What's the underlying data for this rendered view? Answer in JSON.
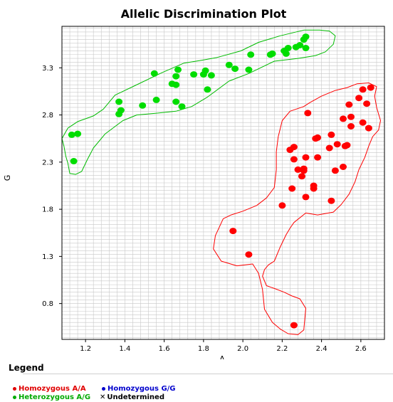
{
  "chart_data": {
    "type": "scatter",
    "title": "Allelic Discrimination Plot",
    "xlabel": "A",
    "ylabel": "G",
    "xlim": [
      1.08,
      2.72
    ],
    "ylim": [
      0.42,
      3.74
    ],
    "x_ticks": [
      "1.2",
      "1.4",
      "1.6",
      "1.8",
      "2.0",
      "2.2",
      "2.4",
      "2.6"
    ],
    "y_ticks": [
      "0.8",
      "1.3",
      "1.8",
      "2.3",
      "2.8",
      "3.3"
    ],
    "grid": true,
    "series": [
      {
        "name": "Homozygous A/A",
        "color": "#ff0000",
        "points": [
          [
            2.26,
            0.57
          ],
          [
            2.03,
            1.32
          ],
          [
            1.95,
            1.57
          ],
          [
            2.2,
            1.84
          ],
          [
            2.32,
            1.93
          ],
          [
            2.45,
            1.89
          ],
          [
            2.25,
            2.02
          ],
          [
            2.36,
            2.02
          ],
          [
            2.36,
            2.05
          ],
          [
            2.3,
            2.15
          ],
          [
            2.31,
            2.21
          ],
          [
            2.28,
            2.22
          ],
          [
            2.31,
            2.23
          ],
          [
            2.47,
            2.21
          ],
          [
            2.51,
            2.25
          ],
          [
            2.26,
            2.33
          ],
          [
            2.32,
            2.35
          ],
          [
            2.38,
            2.35
          ],
          [
            2.24,
            2.43
          ],
          [
            2.26,
            2.46
          ],
          [
            2.44,
            2.45
          ],
          [
            2.48,
            2.49
          ],
          [
            2.52,
            2.47
          ],
          [
            2.53,
            2.48
          ],
          [
            2.37,
            2.55
          ],
          [
            2.38,
            2.56
          ],
          [
            2.45,
            2.59
          ],
          [
            2.55,
            2.68
          ],
          [
            2.64,
            2.66
          ],
          [
            2.51,
            2.76
          ],
          [
            2.55,
            2.78
          ],
          [
            2.61,
            2.72
          ],
          [
            2.33,
            2.82
          ],
          [
            2.54,
            2.91
          ],
          [
            2.59,
            2.98
          ],
          [
            2.63,
            2.92
          ],
          [
            2.61,
            3.07
          ],
          [
            2.65,
            3.09
          ]
        ]
      },
      {
        "name": "Heterozygous A/G",
        "color": "#00dd00",
        "points": [
          [
            1.14,
            2.31
          ],
          [
            1.13,
            2.59
          ],
          [
            1.16,
            2.6
          ],
          [
            1.37,
            2.81
          ],
          [
            1.38,
            2.85
          ],
          [
            1.37,
            2.94
          ],
          [
            1.49,
            2.9
          ],
          [
            1.56,
            2.96
          ],
          [
            1.66,
            2.94
          ],
          [
            1.69,
            2.89
          ],
          [
            1.64,
            3.13
          ],
          [
            1.66,
            3.12
          ],
          [
            1.82,
            3.07
          ],
          [
            1.55,
            3.24
          ],
          [
            1.66,
            3.21
          ],
          [
            1.67,
            3.28
          ],
          [
            1.75,
            3.23
          ],
          [
            1.8,
            3.23
          ],
          [
            1.81,
            3.27
          ],
          [
            1.84,
            3.22
          ],
          [
            1.93,
            3.33
          ],
          [
            1.96,
            3.29
          ],
          [
            2.03,
            3.28
          ],
          [
            2.04,
            3.44
          ],
          [
            2.14,
            3.44
          ],
          [
            2.15,
            3.45
          ],
          [
            2.21,
            3.48
          ],
          [
            2.22,
            3.45
          ],
          [
            2.23,
            3.51
          ],
          [
            2.27,
            3.52
          ],
          [
            2.29,
            3.54
          ],
          [
            2.32,
            3.51
          ],
          [
            2.31,
            3.6
          ],
          [
            2.32,
            3.63
          ]
        ]
      }
    ],
    "clusters": [
      {
        "name": "Homozygous A/A",
        "color": "#ff0000",
        "outline": [
          [
            2.23,
            0.48
          ],
          [
            2.28,
            0.47
          ],
          [
            2.31,
            0.52
          ],
          [
            2.32,
            0.75
          ],
          [
            2.29,
            0.85
          ],
          [
            2.25,
            0.88
          ],
          [
            2.21,
            0.92
          ],
          [
            2.16,
            0.96
          ],
          [
            2.12,
            0.99
          ],
          [
            2.1,
            1.09
          ],
          [
            2.11,
            1.16
          ],
          [
            2.13,
            1.21
          ],
          [
            2.16,
            1.25
          ],
          [
            2.19,
            1.4
          ],
          [
            2.22,
            1.53
          ],
          [
            2.24,
            1.6
          ],
          [
            2.26,
            1.66
          ],
          [
            2.32,
            1.76
          ],
          [
            2.38,
            1.74
          ],
          [
            2.46,
            1.77
          ],
          [
            2.5,
            1.85
          ],
          [
            2.54,
            1.96
          ],
          [
            2.57,
            2.09
          ],
          [
            2.59,
            2.22
          ],
          [
            2.62,
            2.35
          ],
          [
            2.64,
            2.47
          ],
          [
            2.66,
            2.57
          ],
          [
            2.69,
            2.64
          ],
          [
            2.7,
            2.74
          ],
          [
            2.68,
            2.88
          ],
          [
            2.67,
            3.0
          ],
          [
            2.68,
            3.1
          ],
          [
            2.64,
            3.14
          ],
          [
            2.58,
            3.13
          ],
          [
            2.53,
            3.09
          ],
          [
            2.47,
            3.06
          ],
          [
            2.4,
            3.0
          ],
          [
            2.34,
            2.93
          ],
          [
            2.31,
            2.89
          ],
          [
            2.24,
            2.84
          ],
          [
            2.2,
            2.74
          ],
          [
            2.18,
            2.57
          ],
          [
            2.17,
            2.41
          ],
          [
            2.17,
            2.22
          ],
          [
            2.16,
            2.03
          ],
          [
            2.12,
            1.92
          ],
          [
            2.07,
            1.84
          ],
          [
            2.0,
            1.78
          ],
          [
            1.94,
            1.74
          ],
          [
            1.9,
            1.7
          ],
          [
            1.86,
            1.52
          ],
          [
            1.85,
            1.38
          ],
          [
            1.89,
            1.25
          ],
          [
            1.97,
            1.2
          ],
          [
            2.05,
            1.22
          ],
          [
            2.08,
            1.12
          ],
          [
            2.1,
            0.95
          ],
          [
            2.11,
            0.74
          ],
          [
            2.15,
            0.6
          ],
          [
            2.19,
            0.53
          ]
        ]
      },
      {
        "name": "Heterozygous A/G",
        "color": "#00bb00",
        "outline": [
          [
            1.12,
            2.18
          ],
          [
            1.11,
            2.29
          ],
          [
            1.1,
            2.36
          ],
          [
            1.09,
            2.47
          ],
          [
            1.08,
            2.55
          ],
          [
            1.11,
            2.66
          ],
          [
            1.16,
            2.73
          ],
          [
            1.24,
            2.79
          ],
          [
            1.29,
            2.86
          ],
          [
            1.35,
            3.01
          ],
          [
            1.45,
            3.11
          ],
          [
            1.59,
            3.25
          ],
          [
            1.7,
            3.35
          ],
          [
            1.79,
            3.38
          ],
          [
            1.87,
            3.41
          ],
          [
            1.99,
            3.48
          ],
          [
            2.08,
            3.57
          ],
          [
            2.19,
            3.64
          ],
          [
            2.31,
            3.7
          ],
          [
            2.39,
            3.7
          ],
          [
            2.44,
            3.69
          ],
          [
            2.47,
            3.64
          ],
          [
            2.46,
            3.55
          ],
          [
            2.42,
            3.47
          ],
          [
            2.37,
            3.43
          ],
          [
            2.28,
            3.4
          ],
          [
            2.16,
            3.37
          ],
          [
            2.03,
            3.24
          ],
          [
            1.93,
            3.16
          ],
          [
            1.82,
            2.99
          ],
          [
            1.74,
            2.89
          ],
          [
            1.66,
            2.84
          ],
          [
            1.57,
            2.82
          ],
          [
            1.46,
            2.8
          ],
          [
            1.39,
            2.74
          ],
          [
            1.3,
            2.6
          ],
          [
            1.24,
            2.45
          ],
          [
            1.21,
            2.33
          ],
          [
            1.18,
            2.2
          ],
          [
            1.15,
            2.17
          ]
        ]
      }
    ],
    "legend": {
      "title": "Legend",
      "entries": [
        {
          "label": "Homozygous A/A",
          "color": "#e00000",
          "marker": "dot"
        },
        {
          "label": "Homozygous G/G",
          "color": "#0000cc",
          "marker": "dot"
        },
        {
          "label": "Heterozygous A/G",
          "color": "#00aa00",
          "marker": "dot"
        },
        {
          "label": "Undetermined",
          "color": "#000000",
          "marker": "x"
        }
      ]
    }
  }
}
